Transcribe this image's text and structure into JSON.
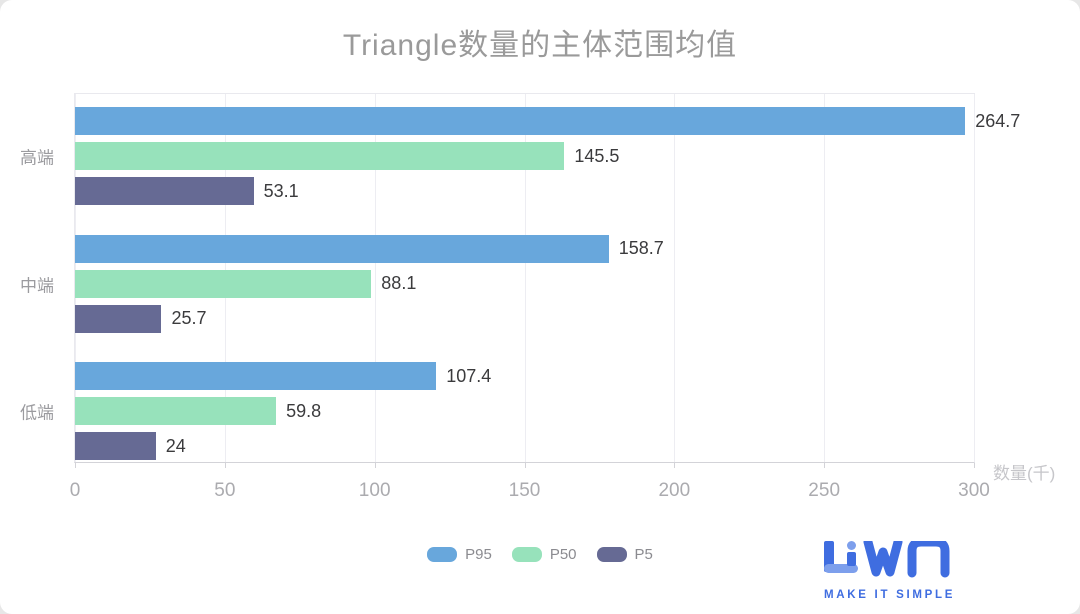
{
  "title": "Triangle数量的主体范围均值",
  "chart_data": {
    "type": "bar",
    "orientation": "horizontal",
    "title": "Triangle数量的主体范围均值",
    "categories": [
      "高端",
      "中端",
      "低端"
    ],
    "series": [
      {
        "name": "P95",
        "color": "#68a7dc",
        "values": [
          264.7,
          158.7,
          107.4
        ]
      },
      {
        "name": "P50",
        "color": "#97e2bb",
        "values": [
          145.5,
          88.1,
          59.8
        ]
      },
      {
        "name": "P5",
        "color": "#666a94",
        "values": [
          53.1,
          25.7,
          24
        ]
      }
    ],
    "xlabel": "数量(千)",
    "xticks": [
      0,
      50,
      100,
      150,
      200,
      250,
      300
    ],
    "xlim": [
      0,
      300
    ],
    "grid": true,
    "legend_position": "bottom",
    "value_labels": true
  },
  "colors": {
    "title_text": "#9a9a9a",
    "value_text": "#3b3b3d",
    "category_text": "#9b9b9f",
    "tick_text": "#ababaf",
    "axis_label_text": "#c6c6ca",
    "grid_line": "#ededf2",
    "axis_line": "#d3d3d8",
    "legend_text": "#8b8b90",
    "logo_blue": "#3f6de0",
    "logo_blue_light": "#7d9fec"
  },
  "logo": {
    "text": "LiWA",
    "tagline": "MAKE IT SIMPLE"
  }
}
